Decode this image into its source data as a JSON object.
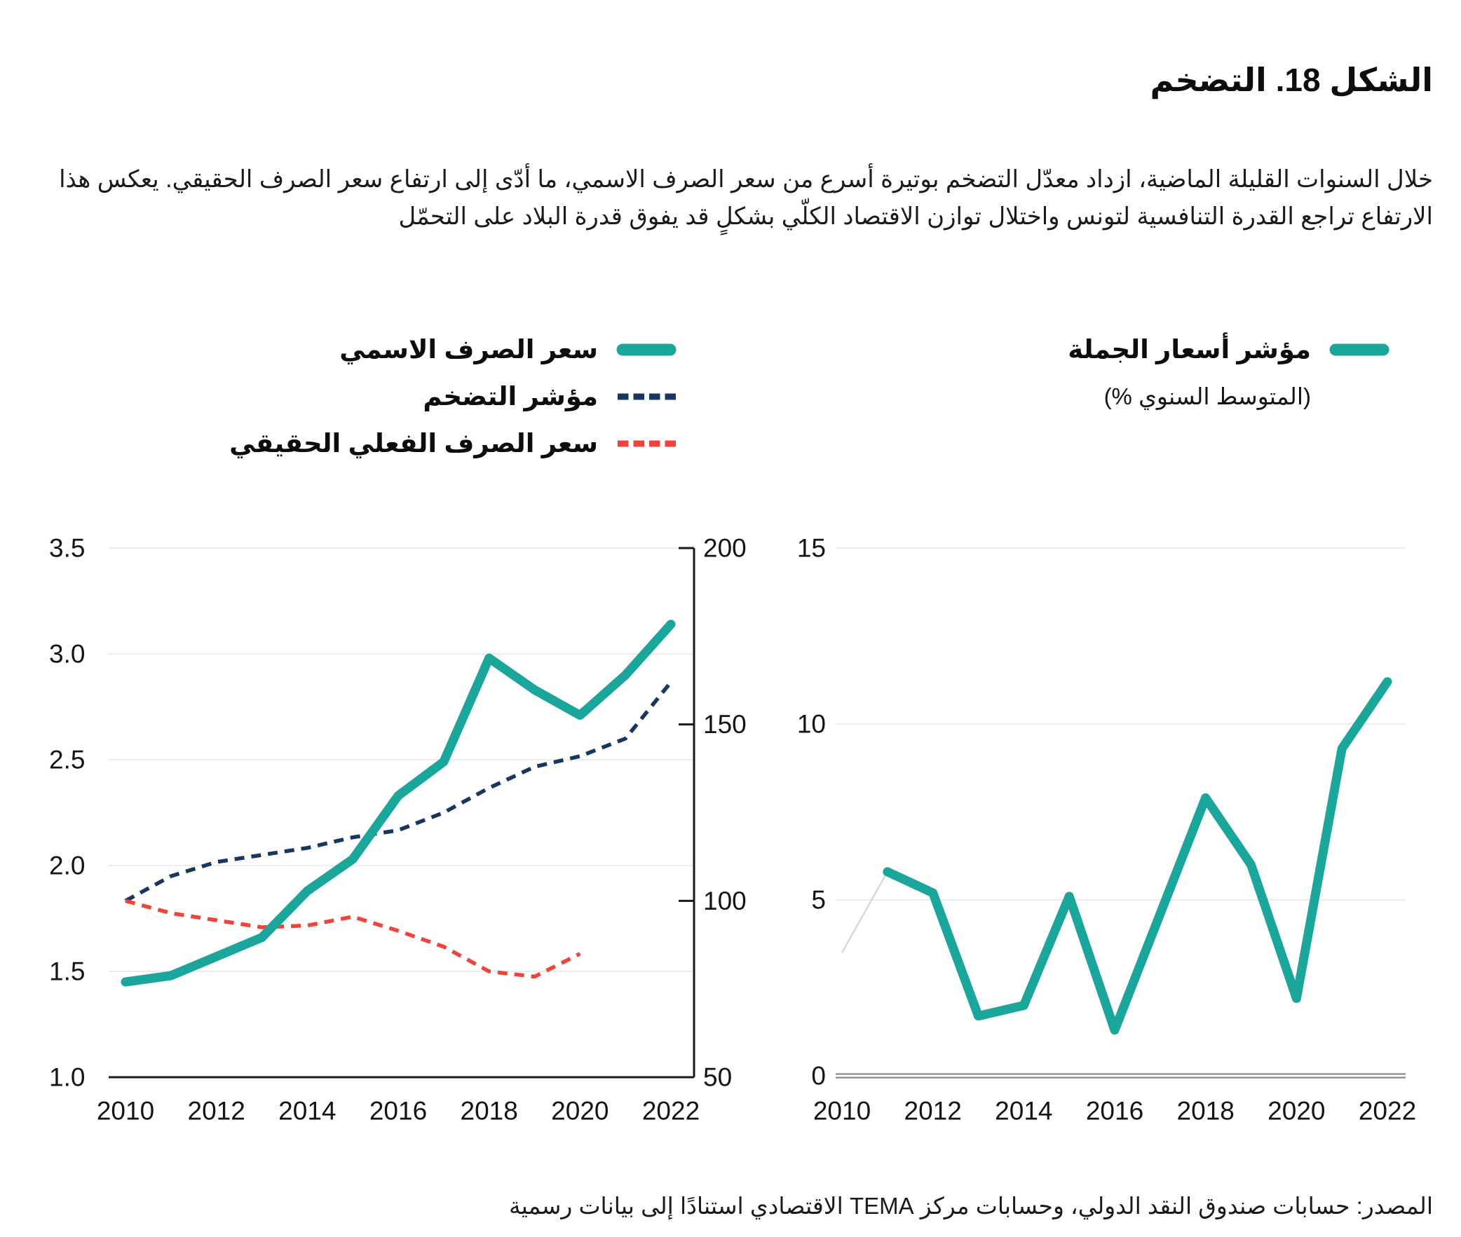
{
  "figure": {
    "title": "الشكل 18. التضخم",
    "description": "خلال السنوات القليلة الماضية، ازداد معدّل التضخم بوتيرة أسرع من سعر الصرف الاسمي، ما أدّى إلى ارتفاع سعر الصرف الحقيقي. يعكس هذا الارتفاع تراجع القدرة التنافسية لتونس واختلال توازن الاقتصاد الكلّي بشكلٍ قد يفوق قدرة البلاد على التحمّل",
    "source": "المصدر: حسابات صندوق النقد الدولي،  وحسابات مركز TEMA الاقتصادي استنادًا إلى بيانات رسمية"
  },
  "legend_left": {
    "items": [
      {
        "label": "سعر الصرف الاسمي",
        "style": "solid"
      },
      {
        "label": "مؤشر التضخم",
        "style": "dashed"
      },
      {
        "label": "سعر الصرف الفعلي الحقيقي",
        "style": "dashed"
      }
    ]
  },
  "legend_right": {
    "label": "مؤشر أسعار الجملة",
    "subtitle": "(المتوسط السنوي %)"
  },
  "colors": {
    "teal": "#1AA69A",
    "navy": "#17375E",
    "red": "#F0443B",
    "grid": "#ECECEC",
    "axis_black": "#1A1A1A",
    "zero_gray": "#8F8F8F",
    "faint_lead": "#D8D8D8"
  },
  "chart_data": [
    {
      "id": "exchange-rate-and-inflation",
      "type": "line",
      "x_range": [
        2010,
        2022
      ],
      "x_ticks": [
        "2010",
        "2012",
        "2014",
        "2016",
        "2018",
        "2020",
        "2022"
      ],
      "x_tick_values": [
        2010,
        2012,
        2014,
        2016,
        2018,
        2020,
        2022
      ],
      "left_axis": {
        "range": [
          1.0,
          3.5
        ],
        "tick_labels": [
          "3.5",
          "3.0",
          "2.5",
          "2.0",
          "1.5",
          "1.0"
        ],
        "tick_values": [
          3.5,
          3.0,
          2.5,
          2.0,
          1.5,
          1.0
        ]
      },
      "right_axis": {
        "range": [
          50,
          200
        ],
        "tick_labels": [
          "200",
          "150",
          "100",
          "50"
        ],
        "tick_values": [
          200,
          150,
          100,
          50
        ]
      },
      "grid": true,
      "series": [
        {
          "name": "مؤشر التضخم",
          "axis": "right",
          "color": "#17375E",
          "style": "dashed",
          "x": [
            2010,
            2011,
            2012,
            2013,
            2014,
            2015,
            2016,
            2017,
            2018,
            2019,
            2020,
            2021,
            2022
          ],
          "values": [
            100,
            107,
            111,
            113,
            115,
            118,
            120,
            125,
            132,
            138,
            141,
            146,
            162
          ]
        },
        {
          "name": "سعر الصرف الفعلي الحقيقي",
          "axis": "right",
          "color": "#F0443B",
          "style": "dashed",
          "x": [
            2010,
            2011,
            2012,
            2013,
            2014,
            2015,
            2016,
            2017,
            2018,
            2019,
            2020
          ],
          "values": [
            100,
            96.5,
            94.5,
            92.5,
            93,
            95.5,
            91.5,
            87,
            80,
            78.5,
            85
          ]
        },
        {
          "name": "سعر الصرف الاسمي",
          "axis": "left",
          "color": "#1AA69A",
          "style": "solid",
          "x": [
            2010,
            2011,
            2012,
            2013,
            2014,
            2015,
            2016,
            2017,
            2018,
            2019,
            2020,
            2021,
            2022
          ],
          "values": [
            1.45,
            1.48,
            1.57,
            1.66,
            1.88,
            2.03,
            2.33,
            2.49,
            2.98,
            2.83,
            2.71,
            2.9,
            3.14
          ]
        }
      ]
    },
    {
      "id": "wholesale-price-index",
      "type": "line",
      "x_range": [
        2010,
        2022
      ],
      "x_ticks": [
        "2010",
        "2012",
        "2014",
        "2016",
        "2018",
        "2020",
        "2022"
      ],
      "x_tick_values": [
        2010,
        2012,
        2014,
        2016,
        2018,
        2020,
        2022
      ],
      "left_axis": {
        "range": [
          0,
          15
        ],
        "tick_labels": [
          "15",
          "10",
          "5",
          "0"
        ],
        "tick_values": [
          15,
          10,
          5,
          0
        ]
      },
      "grid": true,
      "series": [
        {
          "name": "lead-in-segment",
          "axis": "left",
          "color": "#D8D8D8",
          "style": "faint",
          "x": [
            2010,
            2011
          ],
          "values": [
            3.5,
            5.8
          ]
        },
        {
          "name": "مؤشر أسعار الجملة",
          "axis": "left",
          "color": "#1AA69A",
          "style": "solid",
          "x": [
            2011,
            2012,
            2013,
            2014,
            2015,
            2016,
            2017,
            2018,
            2019,
            2020,
            2021,
            2022
          ],
          "values": [
            5.8,
            5.2,
            1.7,
            2.0,
            5.1,
            1.3,
            4.6,
            7.9,
            6.0,
            2.2,
            9.3,
            11.2
          ]
        }
      ]
    }
  ]
}
